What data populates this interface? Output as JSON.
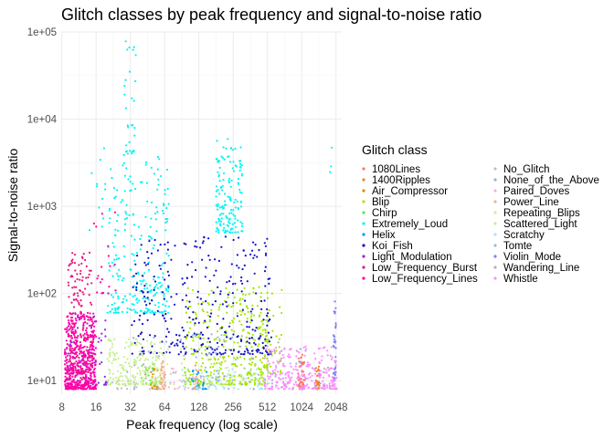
{
  "chart_data": {
    "type": "scatter",
    "title": "Glitch classes by peak frequency and signal-to-noise ratio",
    "xlabel": "Peak frequency (log scale)",
    "ylabel": "Signal-to-noise ratio",
    "x_scale": "log2",
    "y_scale": "log10",
    "xlim": [
      7.9,
      2300
    ],
    "ylim": [
      7.0,
      100000
    ],
    "x_ticks": [
      {
        "value": 8,
        "label": "8"
      },
      {
        "value": 16,
        "label": "16"
      },
      {
        "value": 32,
        "label": "32"
      },
      {
        "value": 64,
        "label": "64"
      },
      {
        "value": 128,
        "label": "128"
      },
      {
        "value": 256,
        "label": "256"
      },
      {
        "value": 512,
        "label": "512"
      },
      {
        "value": 1024,
        "label": "1024"
      },
      {
        "value": 2048,
        "label": "2048"
      }
    ],
    "y_ticks": [
      {
        "value": 10,
        "label": "1e+01"
      },
      {
        "value": 100,
        "label": "1e+02"
      },
      {
        "value": 1000,
        "label": "1e+03"
      },
      {
        "value": 10000,
        "label": "1e+04"
      },
      {
        "value": 100000,
        "label": "1e+05"
      }
    ],
    "grid": true,
    "legend_title": "Glitch class",
    "legend_position": "right",
    "series": [
      {
        "name": "1080Lines",
        "color": "#F8766D",
        "clusters": [
          {
            "x": [
              950,
              1090
            ],
            "y": [
              8,
              20
            ],
            "n": 55
          }
        ]
      },
      {
        "name": "1400Ripples",
        "color": "#EC8239",
        "clusters": [
          {
            "x": [
              1350,
              1500
            ],
            "y": [
              8,
              16
            ],
            "n": 30
          }
        ]
      },
      {
        "name": "Air_Compressor",
        "color": "#DB8E00",
        "clusters": [
          {
            "x": [
              48,
              56
            ],
            "y": [
              8,
              14
            ],
            "n": 25
          }
        ]
      },
      {
        "name": "Blip",
        "color": "#A3E800",
        "clusters": [
          {
            "x": [
              95,
              520
            ],
            "y": [
              9,
              120
            ],
            "n": 340
          },
          {
            "x": [
              330,
              700
            ],
            "y": [
              12,
              130
            ],
            "n": 70
          }
        ]
      },
      {
        "name": "Chirp",
        "color": "#5CE83A",
        "clusters": [
          {
            "x": [
              40,
              60
            ],
            "y": [
              9,
              16
            ],
            "n": 18
          }
        ]
      },
      {
        "name": "Extremely_Loud",
        "color": "#00F5F5",
        "clusters": [
          {
            "x": [
              20,
              70
            ],
            "y": [
              60,
              4000
            ],
            "n": 260
          },
          {
            "x": [
              28,
              36
            ],
            "y": [
              4000,
              80000
            ],
            "n": 30
          },
          {
            "x": [
              180,
              310
            ],
            "y": [
              500,
              6000
            ],
            "n": 150
          },
          {
            "x": [
              14,
              20
            ],
            "y": [
              500,
              5500
            ],
            "n": 12
          },
          {
            "x": [
              1800,
              1900
            ],
            "y": [
              1500,
              6500
            ],
            "n": 3
          }
        ]
      },
      {
        "name": "Helix",
        "color": "#0099EE",
        "clusters": [
          {
            "x": [
              110,
              150
            ],
            "y": [
              8,
              15
            ],
            "n": 30
          }
        ]
      },
      {
        "name": "Koi_Fish",
        "color": "#1010C8",
        "clusters": [
          {
            "x": [
              33,
              560
            ],
            "y": [
              20,
              450
            ],
            "n": 330
          }
        ]
      },
      {
        "name": "Light_Modulation",
        "color": "#8B2BE2",
        "clusters": [
          {
            "x": [
              9,
              20
            ],
            "y": [
              9,
              60
            ],
            "n": 80
          }
        ]
      },
      {
        "name": "Low_Frequency_Burst",
        "color": "#E8187E",
        "clusters": [
          {
            "x": [
              9,
              15
            ],
            "y": [
              12,
              300
            ],
            "n": 180
          }
        ]
      },
      {
        "name": "Low_Frequency_Lines",
        "color": "#FF00A8",
        "clusters": [
          {
            "x": [
              8.5,
              16
            ],
            "y": [
              8,
              60
            ],
            "n": 500
          },
          {
            "x": [
              15,
              24
            ],
            "y": [
              100,
              900
            ],
            "n": 20
          }
        ]
      },
      {
        "name": "No_Glitch",
        "color": "#C0C0C0",
        "clusters": [
          {
            "x": [
              20,
              60
            ],
            "y": [
              8,
              12
            ],
            "n": 20
          }
        ]
      },
      {
        "name": "None_of_the_Above",
        "color": "#A9A9D8",
        "clusters": [
          {
            "x": [
              30,
              2000
            ],
            "y": [
              8,
              40
            ],
            "n": 60
          }
        ]
      },
      {
        "name": "Paired_Doves",
        "color": "#F5B2D2",
        "clusters": [
          {
            "x": [
              60,
              140
            ],
            "y": [
              8,
              14
            ],
            "n": 25
          }
        ]
      },
      {
        "name": "Power_Line",
        "color": "#F5B183",
        "clusters": [
          {
            "x": [
              58,
              64
            ],
            "y": [
              8,
              18
            ],
            "n": 30
          },
          {
            "x": [
              115,
              125
            ],
            "y": [
              8,
              16
            ],
            "n": 15
          }
        ]
      },
      {
        "name": "Repeating_Blips",
        "color": "#D8E8A0",
        "clusters": [
          {
            "x": [
              40,
              250
            ],
            "y": [
              9,
              40
            ],
            "n": 50
          }
        ]
      },
      {
        "name": "Scattered_Light",
        "color": "#C8F090",
        "clusters": [
          {
            "x": [
              20,
              60
            ],
            "y": [
              9,
              30
            ],
            "n": 190
          }
        ]
      },
      {
        "name": "Scratchy",
        "color": "#A8E8EE",
        "clusters": [
          {
            "x": [
              90,
              700
            ],
            "y": [
              8,
              14
            ],
            "n": 70
          }
        ]
      },
      {
        "name": "Tomte",
        "color": "#8EC0F0",
        "clusters": [
          {
            "x": [
              100,
              280
            ],
            "y": [
              10,
              40
            ],
            "n": 25
          }
        ]
      },
      {
        "name": "Violin_Mode",
        "color": "#8080F8",
        "clusters": [
          {
            "x": [
              1950,
              2050
            ],
            "y": [
              10,
              85
            ],
            "n": 40
          }
        ]
      },
      {
        "name": "Wandering_Line",
        "color": "#C8A8C8",
        "clusters": [
          {
            "x": [
              1000,
              2000
            ],
            "y": [
              8,
              14
            ],
            "n": 20
          }
        ]
      },
      {
        "name": "Whistle",
        "color": "#FF8CFF",
        "clusters": [
          {
            "x": [
              480,
              2100
            ],
            "y": [
              8,
              25
            ],
            "n": 230
          }
        ]
      }
    ]
  }
}
